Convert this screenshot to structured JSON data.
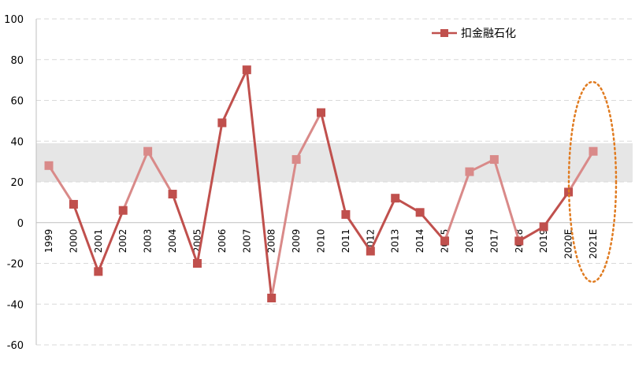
{
  "chart_data": {
    "type": "line",
    "title": "",
    "xlabel": "",
    "ylabel": "",
    "categories": [
      "1999",
      "2000",
      "2001",
      "2002",
      "2003",
      "2004",
      "2005",
      "2006",
      "2007",
      "2008",
      "2009",
      "2010",
      "2011",
      "2012",
      "2013",
      "2014",
      "2015",
      "2016",
      "2017",
      "2018",
      "2019",
      "2020E",
      "2021E"
    ],
    "series": [
      {
        "name": "扣金融石化",
        "values": [
          28,
          9,
          -24,
          6,
          35,
          14,
          -20,
          49,
          75,
          -37,
          31,
          54,
          4,
          -14,
          12,
          5,
          -9,
          25,
          31,
          -9,
          -2,
          15,
          35
        ]
      }
    ],
    "ylim": [
      -60,
      100
    ],
    "yticks": [
      100,
      80,
      60,
      40,
      20,
      0,
      -20,
      -40,
      -60
    ],
    "shaded_band": [
      20,
      39
    ],
    "grid": true,
    "legend_position": "top-right",
    "colors": {
      "line_dark": "#c0504d",
      "line_light": "#d98a89",
      "band": "#e6e6e6",
      "grid": "#d9d9d9",
      "ellipse": "#e07b20"
    }
  }
}
